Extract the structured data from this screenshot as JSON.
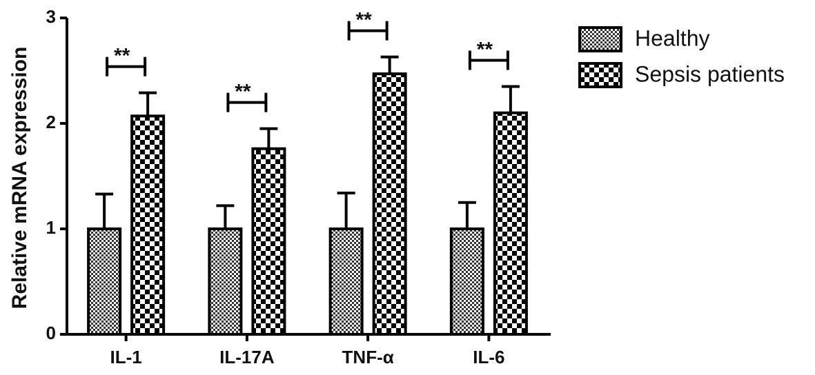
{
  "chart_data": {
    "type": "bar",
    "y_label": "Relative mRNA expression",
    "categories": [
      "IL-1",
      "IL-17A",
      "TNF-α",
      "IL-6"
    ],
    "series": [
      {
        "name": "Healthy",
        "values": [
          1.0,
          1.0,
          1.0,
          1.0
        ],
        "errors": [
          0.33,
          0.22,
          0.34,
          0.25
        ]
      },
      {
        "name": "Sepsis patients",
        "values": [
          2.07,
          1.76,
          2.47,
          2.1
        ],
        "errors": [
          0.22,
          0.19,
          0.16,
          0.25
        ]
      }
    ],
    "annotations": [
      "**",
      "**",
      "**",
      "**"
    ],
    "ylim": [
      0,
      3
    ],
    "yticks": [
      0,
      1,
      2,
      3
    ]
  }
}
